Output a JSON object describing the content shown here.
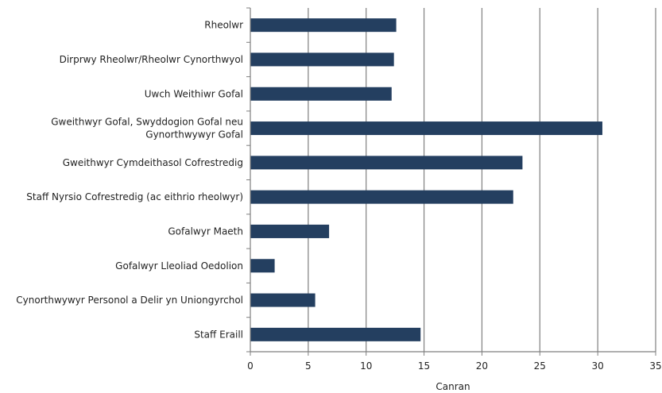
{
  "chart_data": {
    "type": "bar",
    "orientation": "horizontal",
    "categories": [
      [
        "Rheolwr"
      ],
      [
        "Dirprwy Rheolwr/Rheolwr Cynorthwyol"
      ],
      [
        "Uwch Weithiwr Gofal"
      ],
      [
        "Gweithwyr Gofal, Swyddogion Gofal neu",
        "Gynorthwywyr Gofal"
      ],
      [
        "Gweithwyr Cymdeithasol Cofrestredig"
      ],
      [
        "Staff Nyrsio Cofrestredig (ac eithrio rheolwyr)"
      ],
      [
        "Gofalwyr Maeth"
      ],
      [
        "Gofalwyr Lleoliad Oedolion"
      ],
      [
        "Cynorthwywyr Personol a Delir yn Uniongyrchol"
      ],
      [
        "Staff Eraill"
      ]
    ],
    "values": [
      12.6,
      12.4,
      12.2,
      30.4,
      23.5,
      22.7,
      6.8,
      2.1,
      5.6,
      14.7
    ],
    "xlabel": "Canran",
    "ylabel": "",
    "xlim": [
      0,
      35
    ],
    "xticks": [
      0,
      5,
      10,
      15,
      20,
      25,
      30,
      35
    ],
    "grid": "vertical",
    "bar_color": "#243f60",
    "grid_color": "#7f7f7f"
  }
}
